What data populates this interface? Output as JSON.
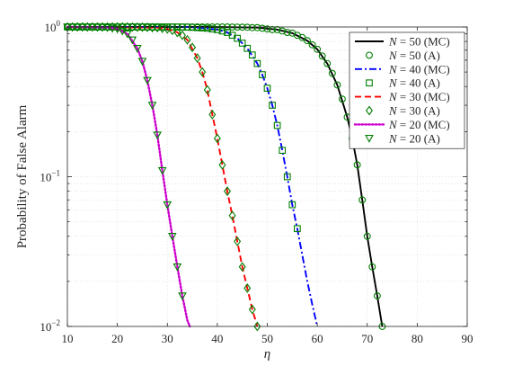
{
  "chart_data": {
    "type": "line",
    "xlabel": "η",
    "ylabel": "Probability of False Alarm",
    "xlim": [
      10,
      90
    ],
    "ylim": [
      0.01,
      1
    ],
    "yscale": "log",
    "grid": true,
    "legend_position": "top-right",
    "x_ticks": [
      10,
      20,
      30,
      40,
      50,
      60,
      70,
      80,
      90
    ],
    "y_ticks": [
      {
        "value": 1,
        "mantissa": "10",
        "exponent": "0"
      },
      {
        "value": 0.1,
        "mantissa": "10",
        "exponent": "−1"
      },
      {
        "value": 0.01,
        "mantissa": "10",
        "exponent": "−2"
      }
    ],
    "series": [
      {
        "name": "N = 50 (MC)",
        "var": "N",
        "rest": " = 50 (MC)",
        "style": "solid",
        "color": "#000000",
        "marker": "none",
        "points": [
          [
            10,
            1
          ],
          [
            40,
            1
          ],
          [
            48,
            0.99
          ],
          [
            52,
            0.96
          ],
          [
            55,
            0.91
          ],
          [
            58,
            0.81
          ],
          [
            60,
            0.71
          ],
          [
            62,
            0.57
          ],
          [
            64,
            0.41
          ],
          [
            66,
            0.25
          ],
          [
            67,
            0.18
          ],
          [
            68,
            0.12
          ],
          [
            69,
            0.07
          ],
          [
            70,
            0.04
          ],
          [
            71,
            0.025
          ],
          [
            72,
            0.016
          ],
          [
            73,
            0.01
          ]
        ]
      },
      {
        "name": "N = 50 (A)",
        "var": "N",
        "rest": " = 50 (A)",
        "style": "none",
        "color": "#007f00",
        "marker": "circle",
        "points": [
          [
            10,
            1
          ],
          [
            11,
            1
          ],
          [
            12,
            1
          ],
          [
            13,
            1
          ],
          [
            14,
            1
          ],
          [
            15,
            1
          ],
          [
            16,
            1
          ],
          [
            17,
            1
          ],
          [
            18,
            1
          ],
          [
            19,
            1
          ],
          [
            20,
            1
          ],
          [
            21,
            1
          ],
          [
            22,
            1
          ],
          [
            23,
            1
          ],
          [
            24,
            1
          ],
          [
            25,
            1
          ],
          [
            26,
            1
          ],
          [
            27,
            1
          ],
          [
            28,
            1
          ],
          [
            29,
            1
          ],
          [
            30,
            1
          ],
          [
            31,
            1
          ],
          [
            32,
            1
          ],
          [
            33,
            1
          ],
          [
            34,
            1
          ],
          [
            35,
            1
          ],
          [
            36,
            1
          ],
          [
            37,
            1
          ],
          [
            38,
            1
          ],
          [
            39,
            1
          ],
          [
            40,
            1
          ],
          [
            41,
            1
          ],
          [
            42,
            1
          ],
          [
            43,
            0.999
          ],
          [
            44,
            0.998
          ],
          [
            45,
            0.997
          ],
          [
            46,
            0.995
          ],
          [
            47,
            0.99
          ],
          [
            48,
            0.99
          ],
          [
            49,
            0.98
          ],
          [
            50,
            0.97
          ],
          [
            51,
            0.96
          ],
          [
            52,
            0.96
          ],
          [
            53,
            0.94
          ],
          [
            54,
            0.92
          ],
          [
            55,
            0.91
          ],
          [
            56,
            0.88
          ],
          [
            57,
            0.85
          ],
          [
            58,
            0.81
          ],
          [
            59,
            0.76
          ],
          [
            60,
            0.71
          ],
          [
            61,
            0.64
          ],
          [
            62,
            0.57
          ],
          [
            63,
            0.49
          ],
          [
            64,
            0.41
          ],
          [
            65,
            0.33
          ],
          [
            66,
            0.25
          ],
          [
            67,
            0.18
          ],
          [
            68,
            0.12
          ],
          [
            69,
            0.07
          ],
          [
            70,
            0.04
          ],
          [
            71,
            0.025
          ],
          [
            72,
            0.016
          ],
          [
            73,
            0.01
          ]
        ]
      },
      {
        "name": "N = 40 (MC)",
        "var": "N",
        "rest": " = 40 (MC)",
        "style": "dashdot",
        "color": "#0000ff",
        "marker": "none",
        "points": [
          [
            10,
            1
          ],
          [
            34,
            1
          ],
          [
            38,
            0.98
          ],
          [
            40,
            0.96
          ],
          [
            42,
            0.92
          ],
          [
            44,
            0.84
          ],
          [
            46,
            0.72
          ],
          [
            48,
            0.57
          ],
          [
            49,
            0.48
          ],
          [
            50,
            0.39
          ],
          [
            51,
            0.3
          ],
          [
            52,
            0.22
          ],
          [
            53,
            0.15
          ],
          [
            54,
            0.1
          ],
          [
            55,
            0.065
          ],
          [
            56,
            0.045
          ],
          [
            57,
            0.03
          ],
          [
            58,
            0.02
          ],
          [
            59,
            0.014
          ],
          [
            60,
            0.01
          ]
        ]
      },
      {
        "name": "N = 40 (A)",
        "var": "N",
        "rest": " = 40 (A)",
        "style": "none",
        "color": "#007f00",
        "marker": "square",
        "points": [
          [
            10,
            1
          ],
          [
            11,
            1
          ],
          [
            12,
            1
          ],
          [
            13,
            1
          ],
          [
            14,
            1
          ],
          [
            15,
            1
          ],
          [
            16,
            1
          ],
          [
            17,
            1
          ],
          [
            18,
            1
          ],
          [
            19,
            1
          ],
          [
            20,
            1
          ],
          [
            21,
            1
          ],
          [
            22,
            1
          ],
          [
            23,
            1
          ],
          [
            24,
            1
          ],
          [
            25,
            1
          ],
          [
            26,
            1
          ],
          [
            27,
            1
          ],
          [
            28,
            1
          ],
          [
            29,
            1
          ],
          [
            30,
            1
          ],
          [
            31,
            1
          ],
          [
            32,
            0.999
          ],
          [
            33,
            0.998
          ],
          [
            34,
            0.997
          ],
          [
            35,
            0.994
          ],
          [
            36,
            0.99
          ],
          [
            37,
            0.985
          ],
          [
            38,
            0.98
          ],
          [
            39,
            0.97
          ],
          [
            40,
            0.96
          ],
          [
            41,
            0.94
          ],
          [
            42,
            0.92
          ],
          [
            43,
            0.88
          ],
          [
            44,
            0.84
          ],
          [
            45,
            0.78
          ],
          [
            46,
            0.72
          ],
          [
            47,
            0.65
          ],
          [
            48,
            0.57
          ],
          [
            49,
            0.48
          ],
          [
            50,
            0.39
          ],
          [
            51,
            0.3
          ],
          [
            52,
            0.22
          ],
          [
            53,
            0.15
          ],
          [
            54,
            0.1
          ],
          [
            55,
            0.065
          ],
          [
            56,
            0.045
          ]
        ]
      },
      {
        "name": "N = 30 (MC)",
        "var": "N",
        "rest": " = 30 (MC)",
        "style": "dashed",
        "color": "#ff0000",
        "marker": "none",
        "points": [
          [
            10,
            1
          ],
          [
            28,
            0.99
          ],
          [
            30,
            0.97
          ],
          [
            32,
            0.92
          ],
          [
            34,
            0.82
          ],
          [
            36,
            0.62
          ],
          [
            37,
            0.5
          ],
          [
            38,
            0.38
          ],
          [
            39,
            0.26
          ],
          [
            40,
            0.18
          ],
          [
            41,
            0.12
          ],
          [
            42,
            0.08
          ],
          [
            43,
            0.055
          ],
          [
            44,
            0.037
          ],
          [
            45,
            0.025
          ],
          [
            46,
            0.018
          ],
          [
            47,
            0.013
          ],
          [
            48,
            0.01
          ]
        ]
      },
      {
        "name": "N = 30 (A)",
        "var": "N",
        "rest": " = 30 (A)",
        "style": "none",
        "color": "#007f00",
        "marker": "diamond",
        "points": [
          [
            10,
            1
          ],
          [
            11,
            1
          ],
          [
            12,
            1
          ],
          [
            13,
            1
          ],
          [
            14,
            1
          ],
          [
            15,
            1
          ],
          [
            16,
            1
          ],
          [
            17,
            1
          ],
          [
            18,
            1
          ],
          [
            19,
            1
          ],
          [
            20,
            1
          ],
          [
            21,
            1
          ],
          [
            22,
            1
          ],
          [
            23,
            0.999
          ],
          [
            24,
            0.998
          ],
          [
            25,
            0.997
          ],
          [
            26,
            0.995
          ],
          [
            27,
            0.99
          ],
          [
            28,
            0.99
          ],
          [
            29,
            0.98
          ],
          [
            30,
            0.97
          ],
          [
            31,
            0.95
          ],
          [
            32,
            0.92
          ],
          [
            33,
            0.88
          ],
          [
            34,
            0.82
          ],
          [
            35,
            0.73
          ],
          [
            36,
            0.62
          ],
          [
            37,
            0.5
          ],
          [
            38,
            0.38
          ],
          [
            39,
            0.26
          ],
          [
            40,
            0.18
          ],
          [
            41,
            0.12
          ],
          [
            42,
            0.08
          ],
          [
            43,
            0.055
          ],
          [
            44,
            0.037
          ],
          [
            45,
            0.025
          ],
          [
            46,
            0.018
          ],
          [
            47,
            0.013
          ],
          [
            48,
            0.01
          ]
        ]
      },
      {
        "name": "N = 20 (MC)",
        "var": "N",
        "rest": " = 20 (MC)",
        "style": "dotted",
        "color": "#cc00cc",
        "marker": "none",
        "points": [
          [
            10,
            1
          ],
          [
            18,
            0.99
          ],
          [
            20,
            0.97
          ],
          [
            22,
            0.9
          ],
          [
            24,
            0.72
          ],
          [
            25,
            0.59
          ],
          [
            26,
            0.44
          ],
          [
            27,
            0.3
          ],
          [
            28,
            0.19
          ],
          [
            29,
            0.11
          ],
          [
            30,
            0.065
          ],
          [
            31,
            0.04
          ],
          [
            32,
            0.025
          ],
          [
            33,
            0.016
          ],
          [
            34,
            0.011
          ],
          [
            34.5,
            0.01
          ]
        ]
      },
      {
        "name": "N = 20 (A)",
        "var": "N",
        "rest": " = 20 (A)",
        "style": "none",
        "color": "#007f00",
        "marker": "triangle-down",
        "points": [
          [
            10,
            1
          ],
          [
            11,
            1
          ],
          [
            12,
            1
          ],
          [
            13,
            1
          ],
          [
            14,
            1
          ],
          [
            15,
            0.999
          ],
          [
            16,
            0.997
          ],
          [
            17,
            0.994
          ],
          [
            18,
            0.99
          ],
          [
            19,
            0.98
          ],
          [
            20,
            0.97
          ],
          [
            21,
            0.94
          ],
          [
            22,
            0.9
          ],
          [
            23,
            0.82
          ],
          [
            24,
            0.72
          ],
          [
            25,
            0.59
          ],
          [
            26,
            0.44
          ],
          [
            27,
            0.3
          ],
          [
            28,
            0.19
          ],
          [
            29,
            0.11
          ],
          [
            30,
            0.065
          ],
          [
            31,
            0.04
          ],
          [
            32,
            0.025
          ],
          [
            33,
            0.016
          ]
        ]
      }
    ]
  }
}
